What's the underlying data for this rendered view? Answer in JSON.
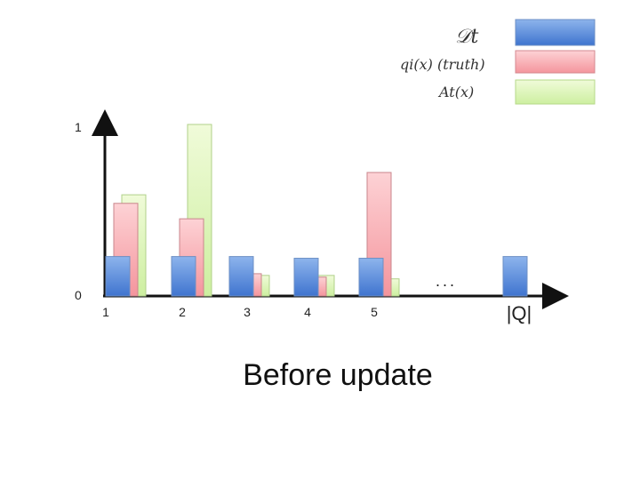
{
  "chart_data": {
    "type": "bar",
    "title": "Before update",
    "categories": [
      "1",
      "2",
      "3",
      "4",
      "5",
      "|Q|"
    ],
    "ellipsis": "...",
    "y_ticks": [
      "0",
      "1"
    ],
    "ylim": [
      0,
      1
    ],
    "series": [
      {
        "name": "𝒟t",
        "color": "#5b8fdc",
        "values": [
          0.23,
          0.23,
          0.23,
          0.22,
          0.22,
          0.23
        ]
      },
      {
        "name": "qi(x) (truth)",
        "color": "#f7a3aa",
        "values": [
          0.54,
          0.45,
          0.13,
          0.11,
          0.72,
          null
        ]
      },
      {
        "name": "At(x)",
        "color": "#d7f5ae",
        "values": [
          0.59,
          1.0,
          0.12,
          0.12,
          0.1,
          null
        ]
      }
    ]
  }
}
